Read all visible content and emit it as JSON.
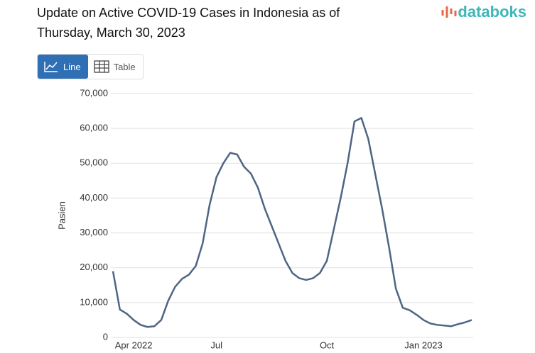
{
  "ui": {
    "logo": "databoks",
    "buttons": [
      "Line",
      "Table"
    ]
  },
  "chart_data": {
    "type": "line",
    "title": "Update on Active COVID-19 Cases in Indonesia as of Thursday, March 30, 2023",
    "ylabel": "Pasien",
    "categories": [
      null,
      null,
      null,
      "Apr 2022",
      null,
      null,
      null,
      null,
      null,
      null,
      null,
      null,
      null,
      null,
      null,
      "Jul",
      null,
      null,
      null,
      null,
      null,
      null,
      null,
      null,
      null,
      null,
      null,
      null,
      null,
      null,
      null,
      "Oct",
      null,
      null,
      null,
      null,
      null,
      null,
      null,
      null,
      null,
      null,
      null,
      null,
      null,
      "Jan 2023",
      null,
      null,
      null,
      null,
      null,
      null,
      null
    ],
    "series": [
      {
        "name": "Pasien",
        "color": "#4e6584",
        "values": [
          19000,
          8000,
          6800,
          5000,
          3600,
          3000,
          3200,
          5000,
          10500,
          14500,
          16800,
          18000,
          20500,
          27000,
          38000,
          46000,
          50000,
          53000,
          52500,
          49000,
          47000,
          43000,
          37000,
          32000,
          27000,
          22000,
          18500,
          17000,
          16500,
          17000,
          18500,
          22000,
          31000,
          40000,
          50000,
          62000,
          63000,
          57000,
          47000,
          37000,
          26000,
          14000,
          8500,
          7800,
          6500,
          5000,
          4000,
          3600,
          3400,
          3200,
          3800,
          4300,
          5000
        ]
      }
    ],
    "ylim": [
      0,
      70000
    ],
    "yticks": [
      0,
      {
        "value": 10000,
        "label": "10,000"
      },
      {
        "value": 20000,
        "label": "20,000"
      },
      {
        "value": 30000,
        "label": "30,000"
      },
      {
        "value": 40000,
        "label": "40,000"
      },
      {
        "value": 50000,
        "label": "50,000"
      },
      {
        "value": 60000,
        "label": "60,000"
      },
      {
        "value": 70000,
        "label": "70,000"
      }
    ],
    "grid": true
  }
}
